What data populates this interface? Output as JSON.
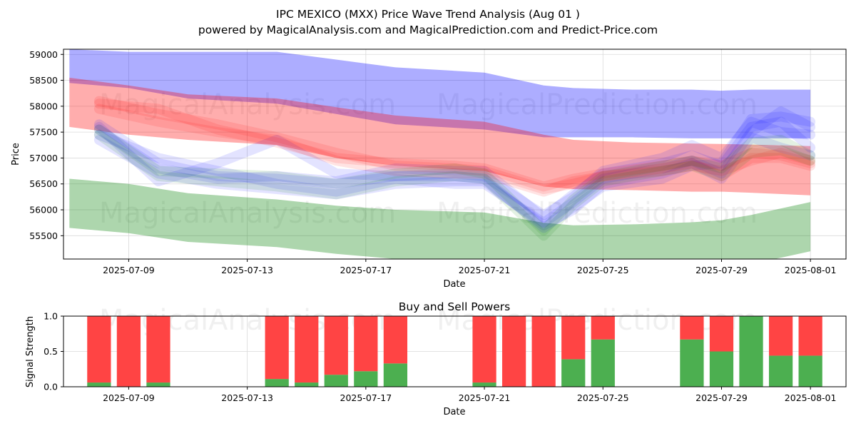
{
  "title_line1": "IPC MEXICO (MXX) Price Wave Trend Analysis (Aug 01 )",
  "title_line2": "powered by MagicalAnalysis.com and MagicalPrediction.com and Predict-Price.com",
  "watermarks": [
    "MagicalAnalysis.com",
    "MagicalPrediction.com"
  ],
  "colors": {
    "blue_band": "#0000ff",
    "red_band": "#ff0000",
    "green_band": "#008000",
    "buy": "#4caf50",
    "sell": "#ff4444",
    "grid": "#d9d9d9"
  },
  "chart_data": [
    {
      "type": "area",
      "title": "",
      "xlabel": "Date",
      "ylabel": "Price",
      "x_ticks": [
        "2025-07-09",
        "2025-07-13",
        "2025-07-17",
        "2025-07-21",
        "2025-07-25",
        "2025-07-29",
        "2025-08-01"
      ],
      "y_ticks": [
        55500,
        56000,
        56500,
        57000,
        57500,
        58000,
        58500,
        59000
      ],
      "xlim": [
        "2025-07-06.8",
        "2025-08-02.2"
      ],
      "ylim": [
        55050,
        59100
      ],
      "grid": true,
      "bands": [
        {
          "color": "blue",
          "x": [
            "2025-07-07",
            "2025-07-09",
            "2025-07-11",
            "2025-07-14",
            "2025-07-16",
            "2025-07-18",
            "2025-07-21",
            "2025-07-23",
            "2025-07-24",
            "2025-07-26",
            "2025-07-28",
            "2025-07-29",
            "2025-07-30",
            "2025-08-01"
          ],
          "upper": [
            59100,
            59050,
            59050,
            59050,
            58900,
            58750,
            58650,
            58400,
            58350,
            58320,
            58320,
            58300,
            58320,
            58320
          ],
          "lower": [
            58450,
            58350,
            58150,
            58050,
            57850,
            57650,
            57550,
            57400,
            57400,
            57400,
            57380,
            57380,
            57380,
            57380
          ]
        },
        {
          "color": "red",
          "x": [
            "2025-07-07",
            "2025-07-09",
            "2025-07-11",
            "2025-07-14",
            "2025-07-16",
            "2025-07-18",
            "2025-07-21",
            "2025-07-23",
            "2025-07-24",
            "2025-07-26",
            "2025-07-28",
            "2025-07-29",
            "2025-07-30",
            "2025-08-01"
          ],
          "upper": [
            58550,
            58400,
            58230,
            58150,
            57980,
            57820,
            57700,
            57450,
            57350,
            57300,
            57280,
            57270,
            57260,
            57230
          ],
          "lower": [
            57600,
            57450,
            57350,
            57250,
            57000,
            56850,
            56750,
            56450,
            56400,
            56380,
            56350,
            56350,
            56330,
            56280
          ]
        },
        {
          "color": "green",
          "x": [
            "2025-07-07",
            "2025-07-09",
            "2025-07-11",
            "2025-07-14",
            "2025-07-16",
            "2025-07-18",
            "2025-07-21",
            "2025-07-23",
            "2025-07-24",
            "2025-07-26",
            "2025-07-28",
            "2025-07-29",
            "2025-07-30",
            "2025-08-01"
          ],
          "upper": [
            56600,
            56500,
            56320,
            56200,
            56080,
            56000,
            55950,
            55750,
            55700,
            55720,
            55760,
            55800,
            55900,
            56150
          ],
          "lower": [
            55650,
            55550,
            55380,
            55280,
            55150,
            55050,
            55000,
            54950,
            54950,
            54950,
            54950,
            54950,
            54950,
            55200
          ]
        }
      ],
      "wave_x": [
        "2025-07-08",
        "2025-07-10",
        "2025-07-12",
        "2025-07-14",
        "2025-07-16",
        "2025-07-18",
        "2025-07-20",
        "2025-07-21",
        "2025-07-23",
        "2025-07-24",
        "2025-07-25",
        "2025-07-27",
        "2025-07-28",
        "2025-07-29",
        "2025-07-30",
        "2025-07-31",
        "2025-08-01"
      ],
      "waves": [
        {
          "color": "blue",
          "values": [
            57650,
            56900,
            56650,
            56600,
            56500,
            56650,
            56700,
            56650,
            55900,
            56250,
            56750,
            57000,
            57250,
            57000,
            57700,
            57500,
            57450
          ]
        },
        {
          "color": "blue",
          "values": [
            57450,
            57000,
            56750,
            56500,
            56350,
            56600,
            56500,
            56500,
            55750,
            56150,
            56600,
            56800,
            56950,
            56700,
            57500,
            57900,
            57600
          ]
        },
        {
          "color": "blue",
          "values": [
            57550,
            56800,
            56600,
            56650,
            56550,
            56800,
            56750,
            56750,
            55850,
            56300,
            56700,
            56900,
            57050,
            56850,
            57600,
            57700,
            57200
          ]
        },
        {
          "color": "blue",
          "values": [
            57350,
            56700,
            56500,
            56400,
            56300,
            56500,
            56550,
            56550,
            55700,
            56000,
            56500,
            56700,
            56900,
            56600,
            57400,
            57200,
            57050
          ]
        },
        {
          "color": "blue",
          "values": [
            57600,
            56550,
            56900,
            57350,
            56700,
            56650,
            56650,
            56600,
            55650,
            56050,
            56450,
            56600,
            56850,
            56900,
            57750,
            57800,
            57700
          ]
        },
        {
          "color": "red",
          "values": [
            58050,
            57950,
            57550,
            57300,
            57000,
            56900,
            56850,
            56800,
            56450,
            56600,
            56700,
            56850,
            56950,
            56850,
            57100,
            57050,
            56900
          ]
        },
        {
          "color": "red",
          "values": [
            58100,
            57850,
            57650,
            57400,
            57100,
            56850,
            56800,
            56750,
            56400,
            56500,
            56650,
            56800,
            56900,
            56650,
            57000,
            57000,
            56850
          ]
        },
        {
          "color": "red",
          "values": [
            57950,
            57700,
            57500,
            57350,
            56950,
            56750,
            56700,
            56700,
            56350,
            56550,
            56650,
            56750,
            56850,
            56750,
            56950,
            57100,
            56950
          ]
        },
        {
          "color": "green",
          "values": [
            57550,
            56750,
            56700,
            56650,
            56500,
            56700,
            56800,
            56700,
            55600,
            56200,
            56650,
            56850,
            56950,
            56800,
            57300,
            57350,
            57050
          ]
        },
        {
          "color": "green",
          "values": [
            57450,
            56650,
            56550,
            56450,
            56300,
            56550,
            56650,
            56600,
            55500,
            56100,
            56550,
            56750,
            56850,
            56650,
            57100,
            57150,
            56950
          ]
        }
      ]
    },
    {
      "type": "bar",
      "title": "Buy and Sell Powers",
      "xlabel": "Date",
      "ylabel": "Signal Strength",
      "x_ticks": [
        "2025-07-09",
        "2025-07-13",
        "2025-07-17",
        "2025-07-21",
        "2025-07-25",
        "2025-07-29",
        "2025-08-01"
      ],
      "y_ticks": [
        "0.0",
        "0.5",
        "1.0"
      ],
      "ylim": [
        0,
        1
      ],
      "xlim": [
        "2025-07-06.8",
        "2025-08-02.2"
      ],
      "grid": true,
      "categories": [
        "2025-07-08",
        "2025-07-09",
        "2025-07-10",
        "2025-07-14",
        "2025-07-15",
        "2025-07-16",
        "2025-07-17",
        "2025-07-18",
        "2025-07-21",
        "2025-07-22",
        "2025-07-23",
        "2025-07-24",
        "2025-07-25",
        "2025-07-28",
        "2025-07-29",
        "2025-07-30",
        "2025-07-31",
        "2025-08-01"
      ],
      "series": [
        {
          "values": [
            0.06,
            0.0,
            0.06,
            0.11,
            0.06,
            0.17,
            0.22,
            0.33,
            0.06,
            0.0,
            0.0,
            0.39,
            0.67,
            0.67,
            0.5,
            1.0,
            0.44,
            0.44
          ]
        },
        {
          "values": [
            0.94,
            1.0,
            0.94,
            0.89,
            0.94,
            0.83,
            0.78,
            0.67,
            0.94,
            1.0,
            1.0,
            0.61,
            0.33,
            0.33,
            0.5,
            0.0,
            0.56,
            0.56
          ]
        }
      ]
    }
  ]
}
